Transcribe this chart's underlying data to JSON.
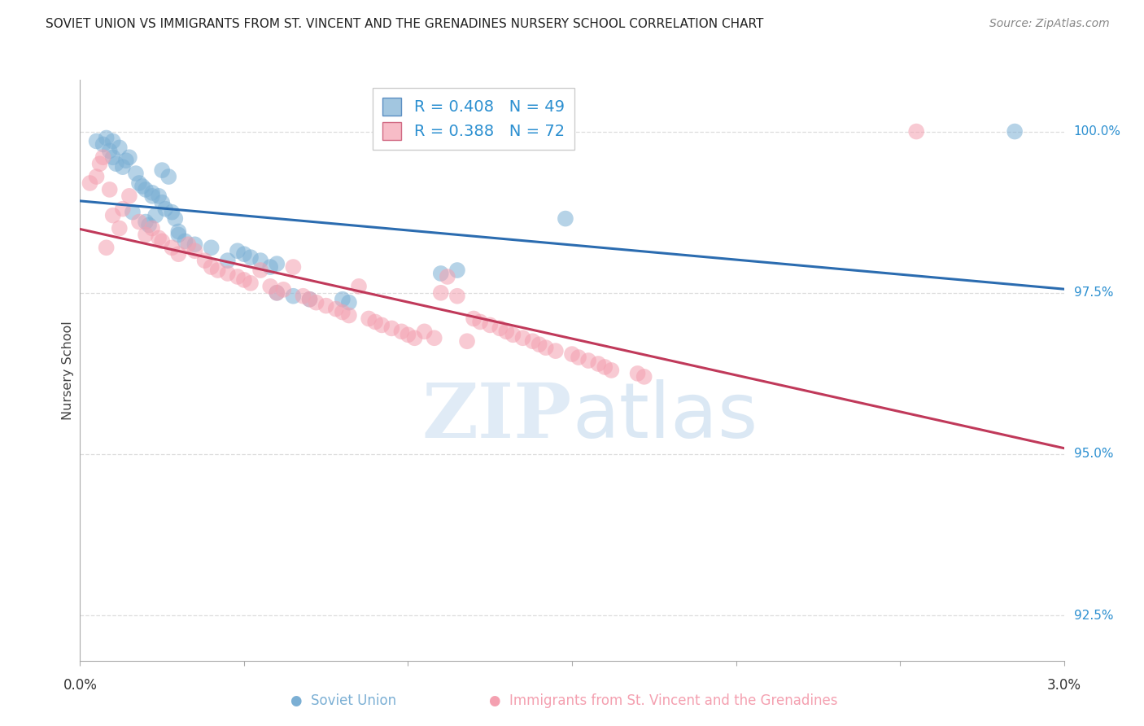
{
  "title": "SOVIET UNION VS IMMIGRANTS FROM ST. VINCENT AND THE GRENADINES NURSERY SCHOOL CORRELATION CHART",
  "source": "Source: ZipAtlas.com",
  "ylabel": "Nursery School",
  "xmin": 0.0,
  "xmax": 3.0,
  "ymin": 91.8,
  "ymax": 100.8,
  "yticks": [
    92.5,
    95.0,
    97.5,
    100.0
  ],
  "ytick_labels": [
    "92.5%",
    "95.0%",
    "97.5%",
    "100.0%"
  ],
  "legend_r1": "R = 0.408",
  "legend_n1": "N = 49",
  "legend_r2": "R = 0.388",
  "legend_n2": "N = 72",
  "legend_label1": "Soviet Union",
  "legend_label2": "Immigrants from St. Vincent and the Grenadines",
  "blue_color": "#7BAFD4",
  "pink_color": "#F4A0B0",
  "blue_line_color": "#2B6CB0",
  "pink_line_color": "#C0395A",
  "blue_x": [
    0.05,
    0.07,
    0.08,
    0.09,
    0.1,
    0.1,
    0.11,
    0.12,
    0.13,
    0.14,
    0.15,
    0.16,
    0.17,
    0.18,
    0.19,
    0.2,
    0.2,
    0.21,
    0.22,
    0.22,
    0.23,
    0.24,
    0.25,
    0.25,
    0.26,
    0.27,
    0.28,
    0.29,
    0.3,
    0.3,
    0.32,
    0.35,
    0.4,
    0.45,
    0.48,
    0.5,
    0.52,
    0.55,
    0.58,
    0.6,
    0.6,
    0.65,
    0.7,
    0.8,
    0.82,
    1.1,
    1.15,
    1.48,
    2.85
  ],
  "blue_y": [
    99.85,
    99.8,
    99.9,
    99.7,
    99.85,
    99.6,
    99.5,
    99.75,
    99.45,
    99.55,
    99.6,
    98.75,
    99.35,
    99.2,
    99.15,
    99.1,
    98.6,
    98.55,
    99.05,
    99.0,
    98.7,
    99.0,
    98.9,
    99.4,
    98.8,
    99.3,
    98.75,
    98.65,
    98.45,
    98.4,
    98.3,
    98.25,
    98.2,
    98.0,
    98.15,
    98.1,
    98.05,
    98.0,
    97.9,
    97.95,
    97.5,
    97.45,
    97.4,
    97.4,
    97.35,
    97.8,
    97.85,
    98.65,
    100.0
  ],
  "pink_x": [
    0.03,
    0.05,
    0.06,
    0.07,
    0.08,
    0.09,
    0.1,
    0.12,
    0.13,
    0.15,
    0.18,
    0.2,
    0.22,
    0.24,
    0.25,
    0.28,
    0.3,
    0.33,
    0.35,
    0.38,
    0.4,
    0.42,
    0.45,
    0.48,
    0.5,
    0.52,
    0.55,
    0.58,
    0.6,
    0.62,
    0.65,
    0.68,
    0.7,
    0.72,
    0.75,
    0.78,
    0.8,
    0.82,
    0.85,
    0.88,
    0.9,
    0.92,
    0.95,
    0.98,
    1.0,
    1.02,
    1.05,
    1.08,
    1.1,
    1.12,
    1.15,
    1.18,
    1.2,
    1.22,
    1.25,
    1.28,
    1.3,
    1.32,
    1.35,
    1.38,
    1.4,
    1.42,
    1.45,
    1.5,
    1.52,
    1.55,
    1.58,
    1.6,
    1.62,
    1.7,
    1.72,
    2.55
  ],
  "pink_y": [
    99.2,
    99.3,
    99.5,
    99.6,
    98.2,
    99.1,
    98.7,
    98.5,
    98.8,
    99.0,
    98.6,
    98.4,
    98.5,
    98.35,
    98.3,
    98.2,
    98.1,
    98.25,
    98.15,
    98.0,
    97.9,
    97.85,
    97.8,
    97.75,
    97.7,
    97.65,
    97.85,
    97.6,
    97.5,
    97.55,
    97.9,
    97.45,
    97.4,
    97.35,
    97.3,
    97.25,
    97.2,
    97.15,
    97.6,
    97.1,
    97.05,
    97.0,
    96.95,
    96.9,
    96.85,
    96.8,
    96.9,
    96.8,
    97.5,
    97.75,
    97.45,
    96.75,
    97.1,
    97.05,
    97.0,
    96.95,
    96.9,
    96.85,
    96.8,
    96.75,
    96.7,
    96.65,
    96.6,
    96.55,
    96.5,
    96.45,
    96.4,
    96.35,
    96.3,
    96.25,
    96.2,
    100.0
  ],
  "background_color": "#ffffff",
  "grid_color": "#DDDDDD"
}
